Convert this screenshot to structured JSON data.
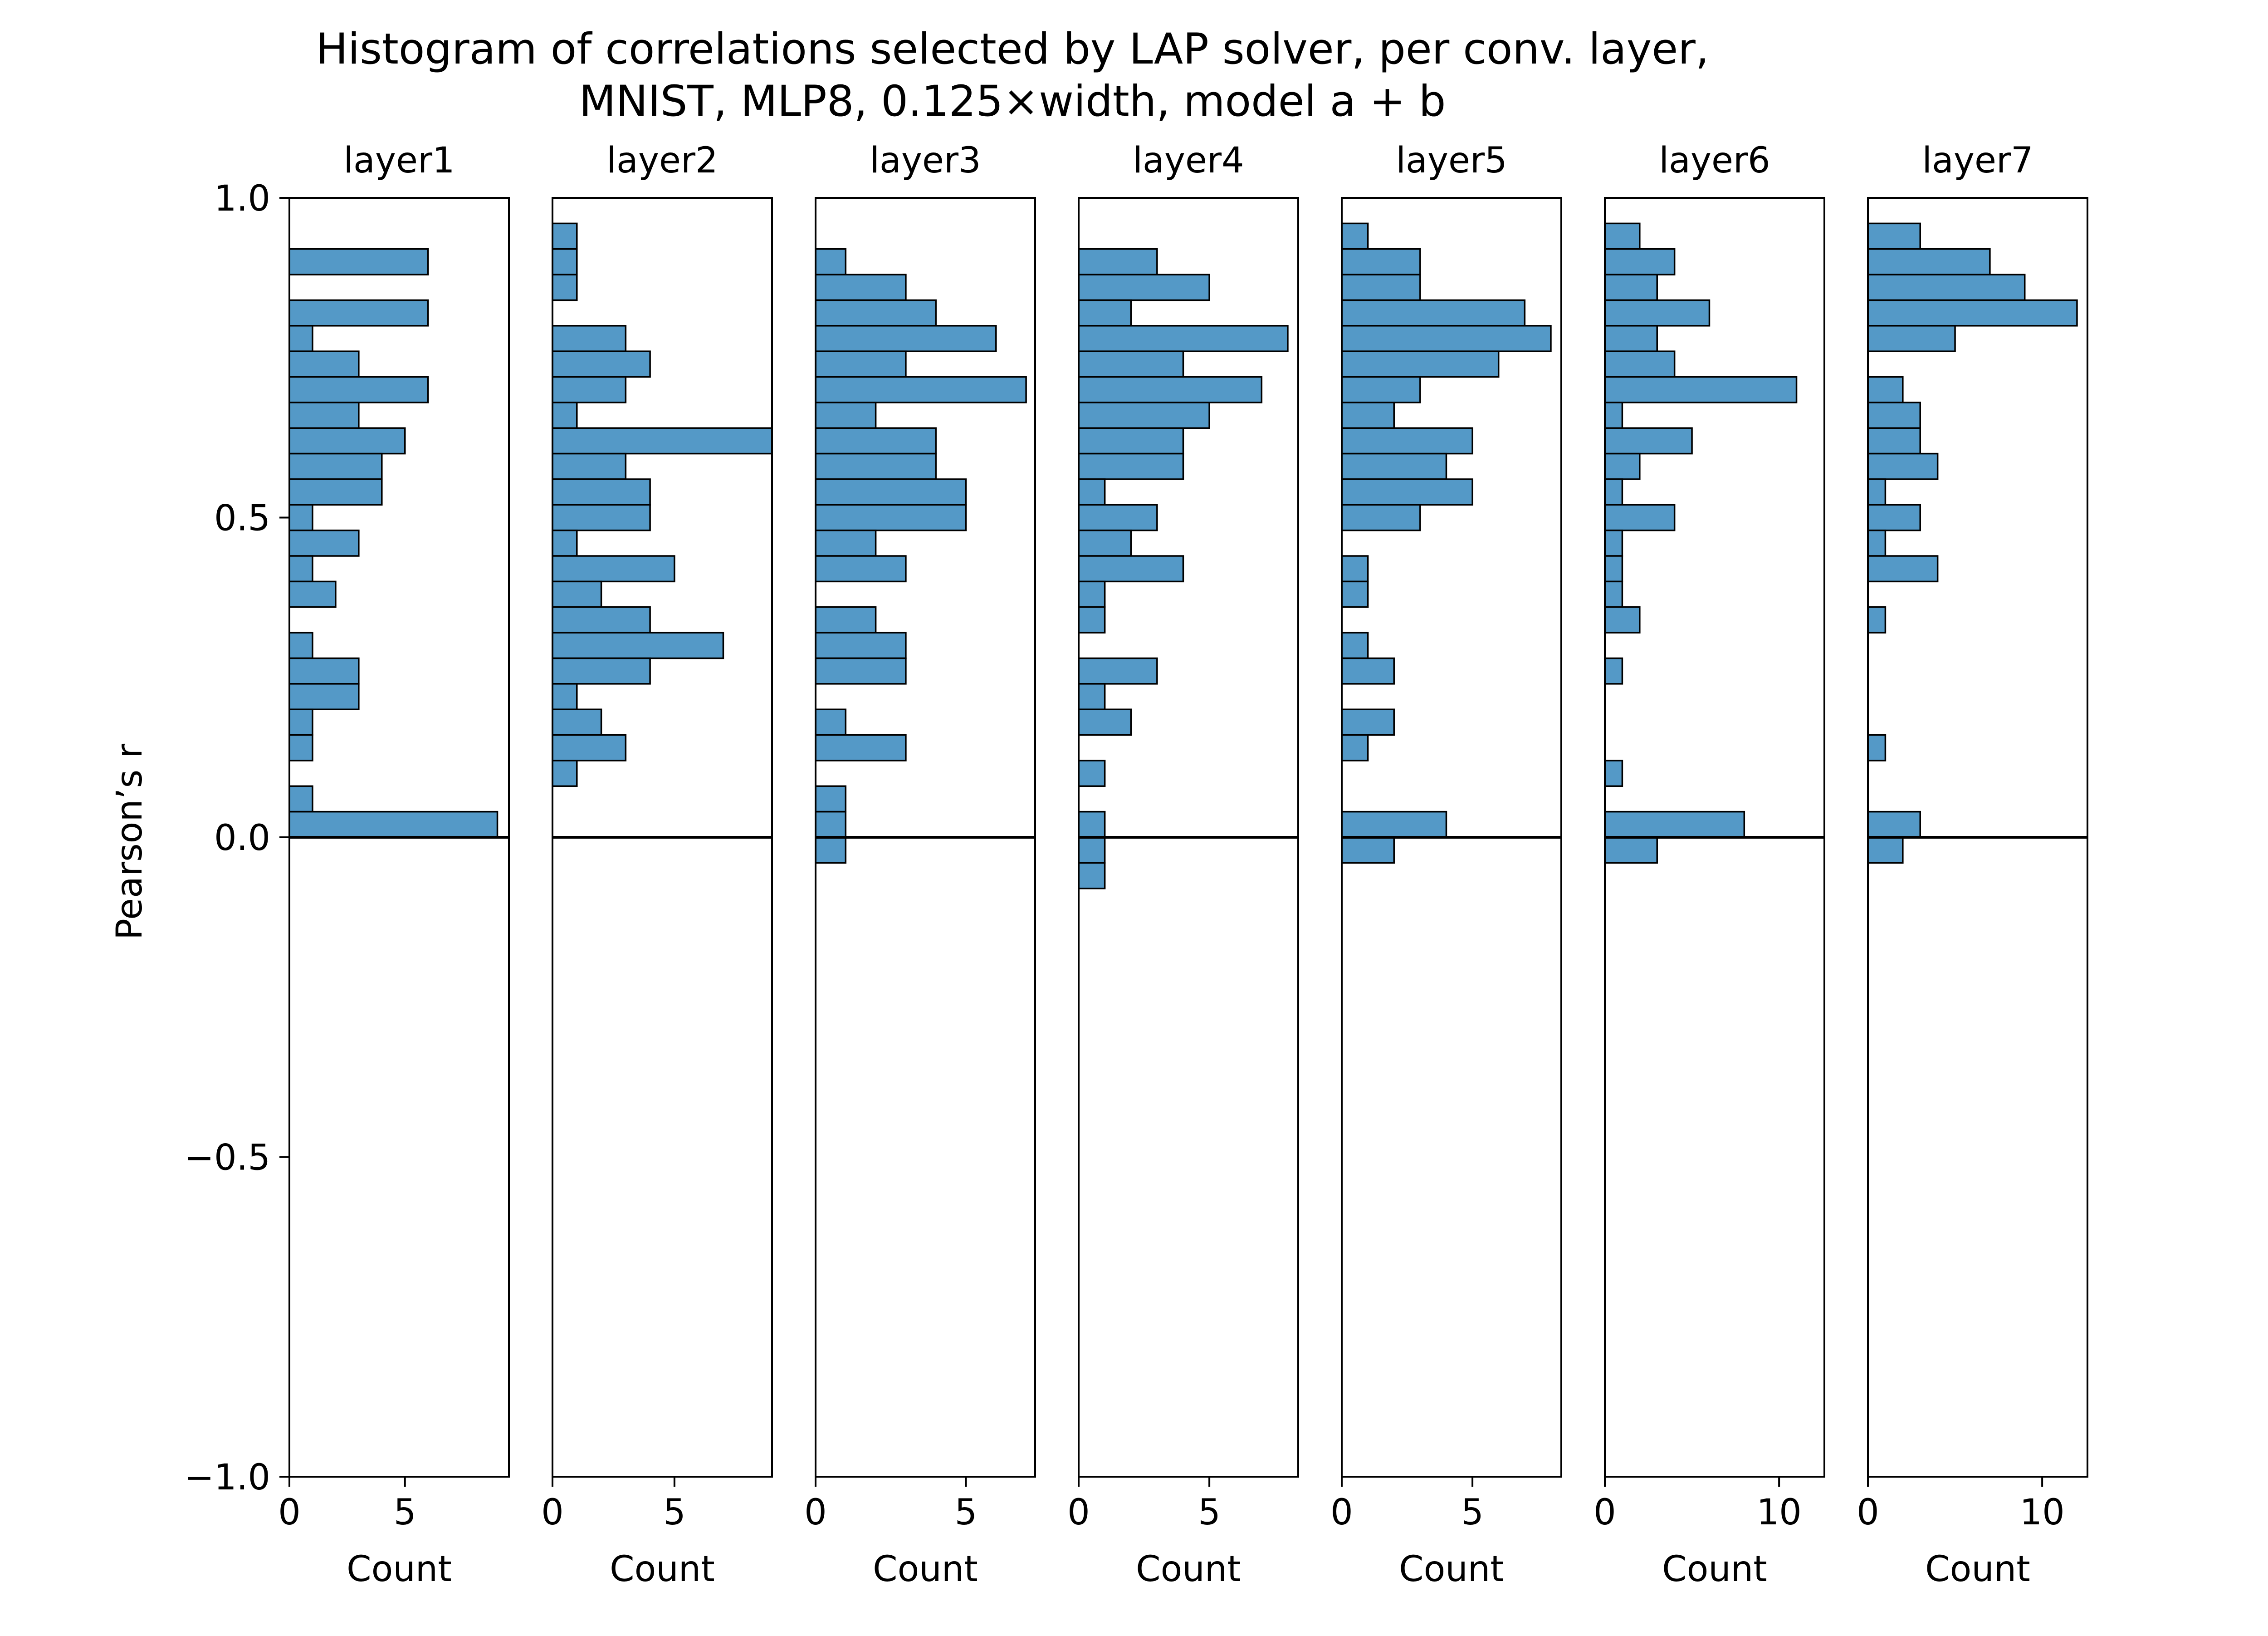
{
  "chart_data": {
    "type": "bar",
    "orientation": "horizontal",
    "title": "Histogram of correlations selected by LAP solver, per conv. layer,",
    "subtitle": "MNIST, MLP8, 0.125×width, model a + b",
    "ylabel": "Pearson’s r",
    "ylim": [
      -1.0,
      1.0
    ],
    "y_ticks": [
      1.0,
      0.5,
      0.0,
      -0.5,
      -1.0
    ],
    "y_tick_labels": [
      "1.0",
      "0.5",
      "0.0",
      "−0.5",
      "−1.0"
    ],
    "bin_width": 0.04,
    "zero_line": true,
    "grid": false,
    "bar_color": "#5499c7",
    "bar_edge_color": "#000000",
    "panels": [
      {
        "name": "layer1",
        "xlabel": "Count",
        "xlim": [
          0,
          9.5
        ],
        "x_ticks": [
          0,
          5
        ],
        "bins": [
          [
            0.88,
            6
          ],
          [
            0.8,
            6
          ],
          [
            0.76,
            1
          ],
          [
            0.72,
            3
          ],
          [
            0.68,
            6
          ],
          [
            0.64,
            3
          ],
          [
            0.6,
            5
          ],
          [
            0.56,
            4
          ],
          [
            0.52,
            4
          ],
          [
            0.48,
            1
          ],
          [
            0.44,
            3
          ],
          [
            0.4,
            1
          ],
          [
            0.36,
            2
          ],
          [
            0.28,
            1
          ],
          [
            0.24,
            3
          ],
          [
            0.2,
            3
          ],
          [
            0.16,
            1
          ],
          [
            0.12,
            1
          ],
          [
            0.04,
            1
          ],
          [
            0.0,
            9
          ]
        ]
      },
      {
        "name": "layer2",
        "xlabel": "Count",
        "xlim": [
          0,
          9.0
        ],
        "x_ticks": [
          0,
          5
        ],
        "bins": [
          [
            0.92,
            1
          ],
          [
            0.88,
            1
          ],
          [
            0.84,
            1
          ],
          [
            0.76,
            3
          ],
          [
            0.72,
            4
          ],
          [
            0.68,
            3
          ],
          [
            0.64,
            1
          ],
          [
            0.6,
            9
          ],
          [
            0.56,
            3
          ],
          [
            0.52,
            4
          ],
          [
            0.48,
            4
          ],
          [
            0.44,
            1
          ],
          [
            0.4,
            5
          ],
          [
            0.36,
            2
          ],
          [
            0.32,
            4
          ],
          [
            0.28,
            7
          ],
          [
            0.24,
            4
          ],
          [
            0.2,
            1
          ],
          [
            0.16,
            2
          ],
          [
            0.12,
            3
          ],
          [
            0.08,
            1
          ]
        ]
      },
      {
        "name": "layer3",
        "xlabel": "Count",
        "xlim": [
          0,
          7.3
        ],
        "x_ticks": [
          0,
          5
        ],
        "bins": [
          [
            0.88,
            1
          ],
          [
            0.84,
            3
          ],
          [
            0.8,
            4
          ],
          [
            0.76,
            6
          ],
          [
            0.72,
            3
          ],
          [
            0.68,
            7
          ],
          [
            0.64,
            2
          ],
          [
            0.6,
            4
          ],
          [
            0.56,
            4
          ],
          [
            0.52,
            5
          ],
          [
            0.48,
            5
          ],
          [
            0.44,
            2
          ],
          [
            0.4,
            3
          ],
          [
            0.32,
            2
          ],
          [
            0.28,
            3
          ],
          [
            0.24,
            3
          ],
          [
            0.16,
            1
          ],
          [
            0.12,
            3
          ],
          [
            0.04,
            1
          ],
          [
            0.0,
            1
          ],
          [
            -0.04,
            1
          ]
        ]
      },
      {
        "name": "layer4",
        "xlabel": "Count",
        "xlim": [
          0,
          8.4
        ],
        "x_ticks": [
          0,
          5
        ],
        "bins": [
          [
            0.88,
            3
          ],
          [
            0.84,
            5
          ],
          [
            0.8,
            2
          ],
          [
            0.76,
            8
          ],
          [
            0.72,
            4
          ],
          [
            0.68,
            7
          ],
          [
            0.64,
            5
          ],
          [
            0.6,
            4
          ],
          [
            0.56,
            4
          ],
          [
            0.52,
            1
          ],
          [
            0.48,
            3
          ],
          [
            0.44,
            2
          ],
          [
            0.4,
            4
          ],
          [
            0.36,
            1
          ],
          [
            0.32,
            1
          ],
          [
            0.24,
            3
          ],
          [
            0.2,
            1
          ],
          [
            0.16,
            2
          ],
          [
            0.08,
            1
          ],
          [
            0.0,
            1
          ],
          [
            -0.04,
            1
          ],
          [
            -0.08,
            1
          ]
        ]
      },
      {
        "name": "layer5",
        "xlabel": "Count",
        "xlim": [
          0,
          8.4
        ],
        "x_ticks": [
          0,
          5
        ],
        "bins": [
          [
            0.92,
            1
          ],
          [
            0.88,
            3
          ],
          [
            0.84,
            3
          ],
          [
            0.8,
            7
          ],
          [
            0.76,
            8
          ],
          [
            0.72,
            6
          ],
          [
            0.68,
            3
          ],
          [
            0.64,
            2
          ],
          [
            0.6,
            5
          ],
          [
            0.56,
            4
          ],
          [
            0.52,
            5
          ],
          [
            0.48,
            3
          ],
          [
            0.4,
            1
          ],
          [
            0.36,
            1
          ],
          [
            0.28,
            1
          ],
          [
            0.24,
            2
          ],
          [
            0.16,
            2
          ],
          [
            0.12,
            1
          ],
          [
            0.0,
            4
          ],
          [
            -0.04,
            2
          ]
        ]
      },
      {
        "name": "layer6",
        "xlabel": "Count",
        "xlim": [
          0,
          12.6
        ],
        "x_ticks": [
          0,
          10
        ],
        "bins": [
          [
            0.92,
            2
          ],
          [
            0.88,
            4
          ],
          [
            0.84,
            3
          ],
          [
            0.8,
            6
          ],
          [
            0.76,
            3
          ],
          [
            0.72,
            4
          ],
          [
            0.68,
            11
          ],
          [
            0.64,
            1
          ],
          [
            0.6,
            5
          ],
          [
            0.56,
            2
          ],
          [
            0.52,
            1
          ],
          [
            0.48,
            4
          ],
          [
            0.44,
            1
          ],
          [
            0.4,
            1
          ],
          [
            0.36,
            1
          ],
          [
            0.32,
            2
          ],
          [
            0.24,
            1
          ],
          [
            0.08,
            1
          ],
          [
            0.0,
            8
          ],
          [
            -0.04,
            3
          ]
        ]
      },
      {
        "name": "layer7",
        "xlabel": "Count",
        "xlim": [
          0,
          12.6
        ],
        "x_ticks": [
          0,
          10
        ],
        "bins": [
          [
            0.92,
            3
          ],
          [
            0.88,
            7
          ],
          [
            0.84,
            9
          ],
          [
            0.8,
            12
          ],
          [
            0.76,
            5
          ],
          [
            0.68,
            2
          ],
          [
            0.64,
            3
          ],
          [
            0.6,
            3
          ],
          [
            0.56,
            4
          ],
          [
            0.52,
            1
          ],
          [
            0.48,
            3
          ],
          [
            0.44,
            1
          ],
          [
            0.4,
            4
          ],
          [
            0.32,
            1
          ],
          [
            0.12,
            1
          ],
          [
            0.0,
            3
          ],
          [
            -0.04,
            2
          ]
        ]
      }
    ]
  }
}
